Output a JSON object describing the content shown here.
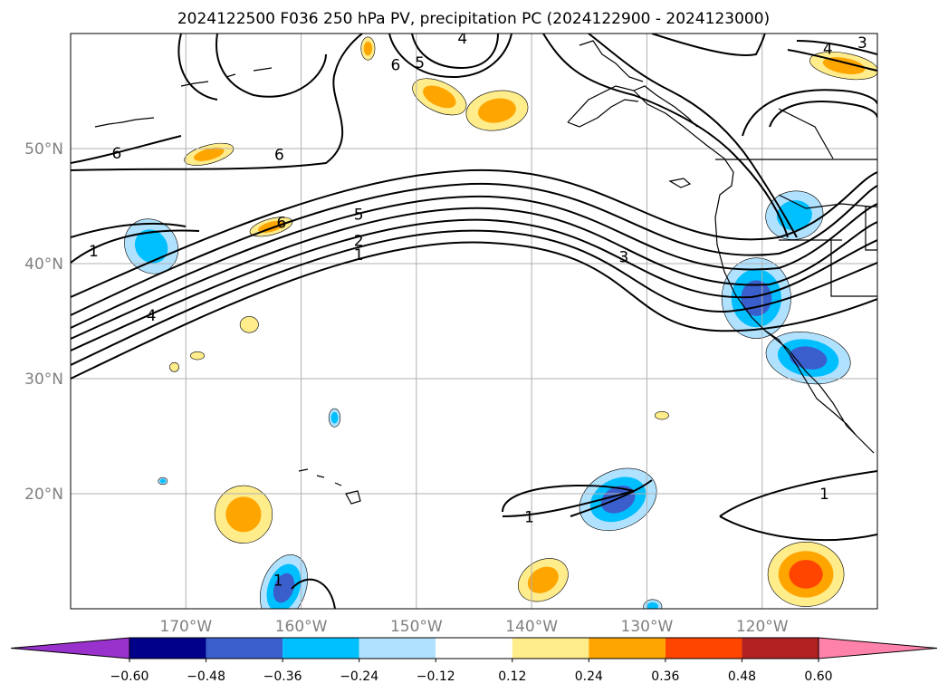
{
  "title": "2024122500 F036 250 hPa PV, precipitation PC (2024122900 - 2024123000)",
  "chart_data": {
    "type": "map-contour",
    "title": "2024122500 F036 250 hPa PV, precipitation PC (2024122900 - 2024123000)",
    "lon_range": [
      -180,
      -110
    ],
    "lat_range": [
      10,
      60
    ],
    "lon_ticks": [
      -170,
      -160,
      -150,
      -140,
      -130,
      -120
    ],
    "lon_tick_labels": [
      "170°W",
      "160°W",
      "150°W",
      "140°W",
      "130°W",
      "120°W"
    ],
    "lat_ticks": [
      20,
      30,
      40,
      50
    ],
    "lat_tick_labels": [
      "20°N",
      "30°N",
      "40°N",
      "50°N"
    ],
    "grid": true,
    "contour_labels": [
      {
        "text": "1",
        "lon": -178,
        "lat": 41.1
      },
      {
        "text": "4",
        "lon": -173,
        "lat": 35.5
      },
      {
        "text": "1",
        "lon": -155,
        "lat": 40.8
      },
      {
        "text": "2",
        "lon": -155,
        "lat": 42.0
      },
      {
        "text": "5",
        "lon": -155,
        "lat": 44.3
      },
      {
        "text": "6",
        "lon": -161.7,
        "lat": 43.6
      },
      {
        "text": "6",
        "lon": -161.9,
        "lat": 49.5
      },
      {
        "text": "6",
        "lon": -176,
        "lat": 49.6
      },
      {
        "text": "6",
        "lon": -151.8,
        "lat": 57.3
      },
      {
        "text": "5",
        "lon": -149.7,
        "lat": 57.5
      },
      {
        "text": "4",
        "lon": -146,
        "lat": 59.6
      },
      {
        "text": "4",
        "lon": -114.3,
        "lat": 58.7
      },
      {
        "text": "3",
        "lon": -111.3,
        "lat": 59.2
      },
      {
        "text": "3",
        "lon": -132,
        "lat": 40.6
      },
      {
        "text": "1",
        "lon": -114.6,
        "lat": 20.0
      },
      {
        "text": "1",
        "lon": -140.2,
        "lat": 18.0
      },
      {
        "text": "1",
        "lon": -162.0,
        "lat": 12.5
      }
    ],
    "colorbar": {
      "levels": [
        -0.6,
        -0.48,
        -0.36,
        -0.24,
        -0.12,
        0.12,
        0.24,
        0.36,
        0.48,
        0.6
      ],
      "tick_labels": [
        "−0.60",
        "−0.48",
        "−0.36",
        "−0.24",
        "−0.12",
        "0.12",
        "0.24",
        "0.36",
        "0.48",
        "0.60"
      ],
      "colors": [
        "#9932cc",
        "#00008b",
        "#3a5fcd",
        "#00bfff",
        "#b0e2ff",
        "#ffffff",
        "#ffec8b",
        "#ffa500",
        "#ff4500",
        "#b22222",
        "#ff82ab"
      ],
      "extend": "both"
    },
    "precip_blobs": [
      {
        "lon": -173,
        "lat": 41.5,
        "rlon": 2.2,
        "rlat": 2.5,
        "rot": -40,
        "value": -0.3
      },
      {
        "lon": -120.5,
        "lat": 37.0,
        "rlon": 3.0,
        "rlat": 3.5,
        "rot": 0,
        "value": -0.45
      },
      {
        "lon": -116.0,
        "lat": 31.8,
        "rlon": 3.7,
        "rlat": 2.2,
        "rot": 10,
        "value": -0.45
      },
      {
        "lon": -117.2,
        "lat": 44.2,
        "rlon": 2.5,
        "rlat": 2.1,
        "rot": -10,
        "value": -0.33
      },
      {
        "lon": -132.5,
        "lat": 19.5,
        "rlon": 3.5,
        "rlat": 2.5,
        "rot": -25,
        "value": -0.45
      },
      {
        "lon": -161.5,
        "lat": 11.8,
        "rlon": 1.9,
        "rlat": 3.0,
        "rot": 20,
        "value": -0.4
      },
      {
        "lon": -157.1,
        "lat": 26.6,
        "rlon": 0.5,
        "rlat": 0.8,
        "rot": 0,
        "value": -0.3
      },
      {
        "lon": -172.0,
        "lat": 21.1,
        "rlon": 0.4,
        "rlat": 0.3,
        "rot": 0,
        "value": -0.3
      },
      {
        "lon": -129.5,
        "lat": 10.2,
        "rlon": 0.8,
        "rlat": 0.6,
        "rot": 0,
        "value": -0.3
      },
      {
        "lon": -165.0,
        "lat": 18.2,
        "rlon": 2.5,
        "rlat": 2.5,
        "rot": 0,
        "value": 0.3
      },
      {
        "lon": -139.0,
        "lat": 12.5,
        "rlon": 2.3,
        "rlat": 1.7,
        "rot": -30,
        "value": 0.3
      },
      {
        "lon": -116.2,
        "lat": 13.0,
        "rlon": 3.3,
        "rlat": 2.8,
        "rot": 0,
        "value": 0.42
      },
      {
        "lon": -148.0,
        "lat": 54.5,
        "rlon": 2.5,
        "rlat": 1.3,
        "rot": 25,
        "value": 0.3
      },
      {
        "lon": -143.0,
        "lat": 53.3,
        "rlon": 2.7,
        "rlat": 1.7,
        "rot": -10,
        "value": 0.3
      },
      {
        "lon": -112.9,
        "lat": 57.2,
        "rlon": 3.0,
        "rlat": 1.1,
        "rot": 10,
        "value": 0.3
      },
      {
        "lon": -168.0,
        "lat": 49.5,
        "rlon": 2.2,
        "rlat": 0.8,
        "rot": -15,
        "value": 0.3
      },
      {
        "lon": -162.6,
        "lat": 43.2,
        "rlon": 1.9,
        "rlat": 0.7,
        "rot": -15,
        "value": 0.3
      },
      {
        "lon": -154.2,
        "lat": 58.7,
        "rlon": 0.6,
        "rlat": 1.0,
        "rot": 0,
        "value": 0.3
      },
      {
        "lon": -164.5,
        "lat": 34.7,
        "rlon": 0.8,
        "rlat": 0.7,
        "rot": 0,
        "value": 0.15
      },
      {
        "lon": -171.0,
        "lat": 31.0,
        "rlon": 0.4,
        "rlat": 0.4,
        "rot": 0,
        "value": 0.2
      },
      {
        "lon": -169.0,
        "lat": 32.0,
        "rlon": 0.6,
        "rlat": 0.35,
        "rot": 0,
        "value": 0.2
      },
      {
        "lon": -128.7,
        "lat": 26.8,
        "rlon": 0.6,
        "rlat": 0.35,
        "rot": 0,
        "value": 0.2
      }
    ]
  }
}
